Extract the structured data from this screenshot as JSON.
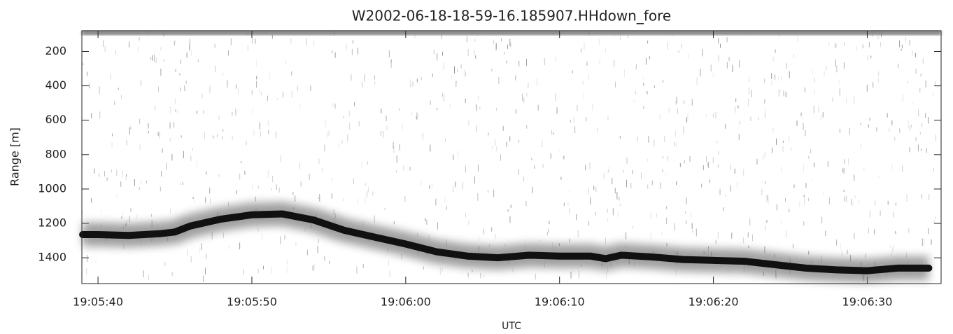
{
  "chart_data": {
    "type": "line",
    "title": "W2002-06-18-18-59-16.185907.HHdown_fore",
    "y_label": "Range [m]",
    "x_label": "UTC",
    "x": [
      "19:05:39",
      "19:05:40",
      "19:05:42",
      "19:05:44",
      "19:05:45",
      "19:05:46",
      "19:05:48",
      "19:05:50",
      "19:05:52",
      "19:05:54",
      "19:05:56",
      "19:05:58",
      "19:06:00",
      "19:06:02",
      "19:06:04",
      "19:06:06",
      "19:06:08",
      "19:06:10",
      "19:06:12",
      "19:06:13",
      "19:06:14",
      "19:06:16",
      "19:06:18",
      "19:06:20",
      "19:06:22",
      "19:06:24",
      "19:06:26",
      "19:06:28",
      "19:06:30",
      "19:06:32",
      "19:06:34"
    ],
    "values": [
      1265,
      1265,
      1270,
      1260,
      1250,
      1215,
      1175,
      1150,
      1145,
      1180,
      1240,
      1280,
      1320,
      1365,
      1390,
      1400,
      1385,
      1390,
      1390,
      1405,
      1385,
      1395,
      1410,
      1415,
      1420,
      1440,
      1460,
      1470,
      1475,
      1460,
      1460
    ],
    "color": "#111111",
    "xlim": [
      "19:05:38.95",
      "19:06:34.8"
    ],
    "xticks": [
      "19:05:40",
      "19:05:50",
      "19:06:00",
      "19:06:10",
      "19:06:20",
      "19:06:30"
    ],
    "ylim": [
      1550,
      80
    ],
    "yticks": [
      200,
      400,
      600,
      800,
      1000,
      1200,
      1400
    ]
  }
}
